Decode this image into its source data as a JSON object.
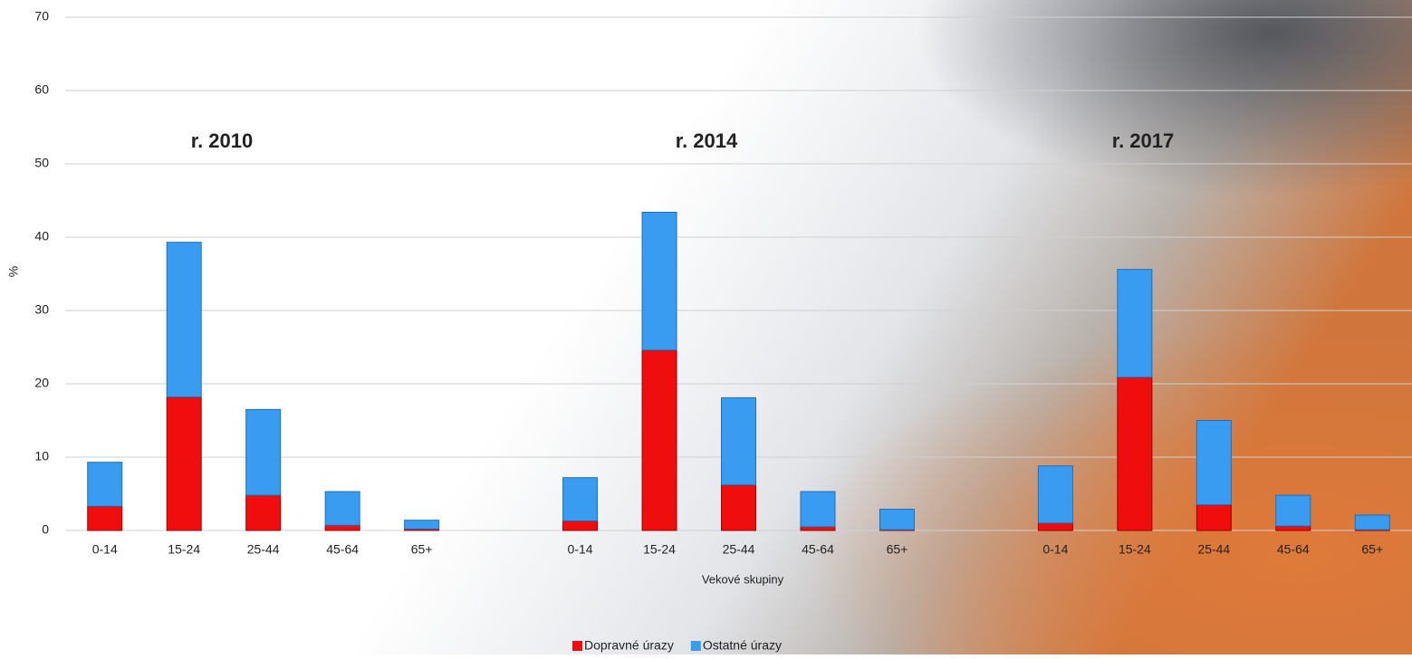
{
  "chart_data": {
    "type": "stacked_bar",
    "categories": [
      "0-14",
      "15-24",
      "25-44",
      "45-64",
      "65+",
      null,
      "0-14",
      "15-24",
      "25-44",
      "45-64",
      "65+",
      null,
      "0-14",
      "15-24",
      "25-44",
      "45-64",
      "65+"
    ],
    "series": [
      {
        "name": "Dopravné úrazy",
        "color": "#f00d0d",
        "values": [
          3.3,
          18.2,
          4.8,
          0.7,
          0.2,
          null,
          1.3,
          24.6,
          6.2,
          0.5,
          0.1,
          null,
          1.0,
          20.9,
          3.5,
          0.6,
          0.1
        ]
      },
      {
        "name": "Ostatné úrazy",
        "color": "#3a9cf0",
        "values": [
          6.0,
          21.1,
          11.7,
          4.6,
          1.2,
          null,
          5.9,
          18.8,
          11.9,
          4.8,
          2.8,
          null,
          7.8,
          14.7,
          11.5,
          4.2,
          2.0
        ]
      }
    ],
    "annotations": [
      "r. 2010",
      "r. 2014",
      "r. 2017"
    ],
    "y_label": "%",
    "x_label": "Vekové skupiny",
    "ylim": [
      0,
      70
    ],
    "yticks": [
      0,
      10,
      20,
      30,
      40,
      50,
      60,
      70
    ],
    "grid": true,
    "legend": "bottom"
  }
}
